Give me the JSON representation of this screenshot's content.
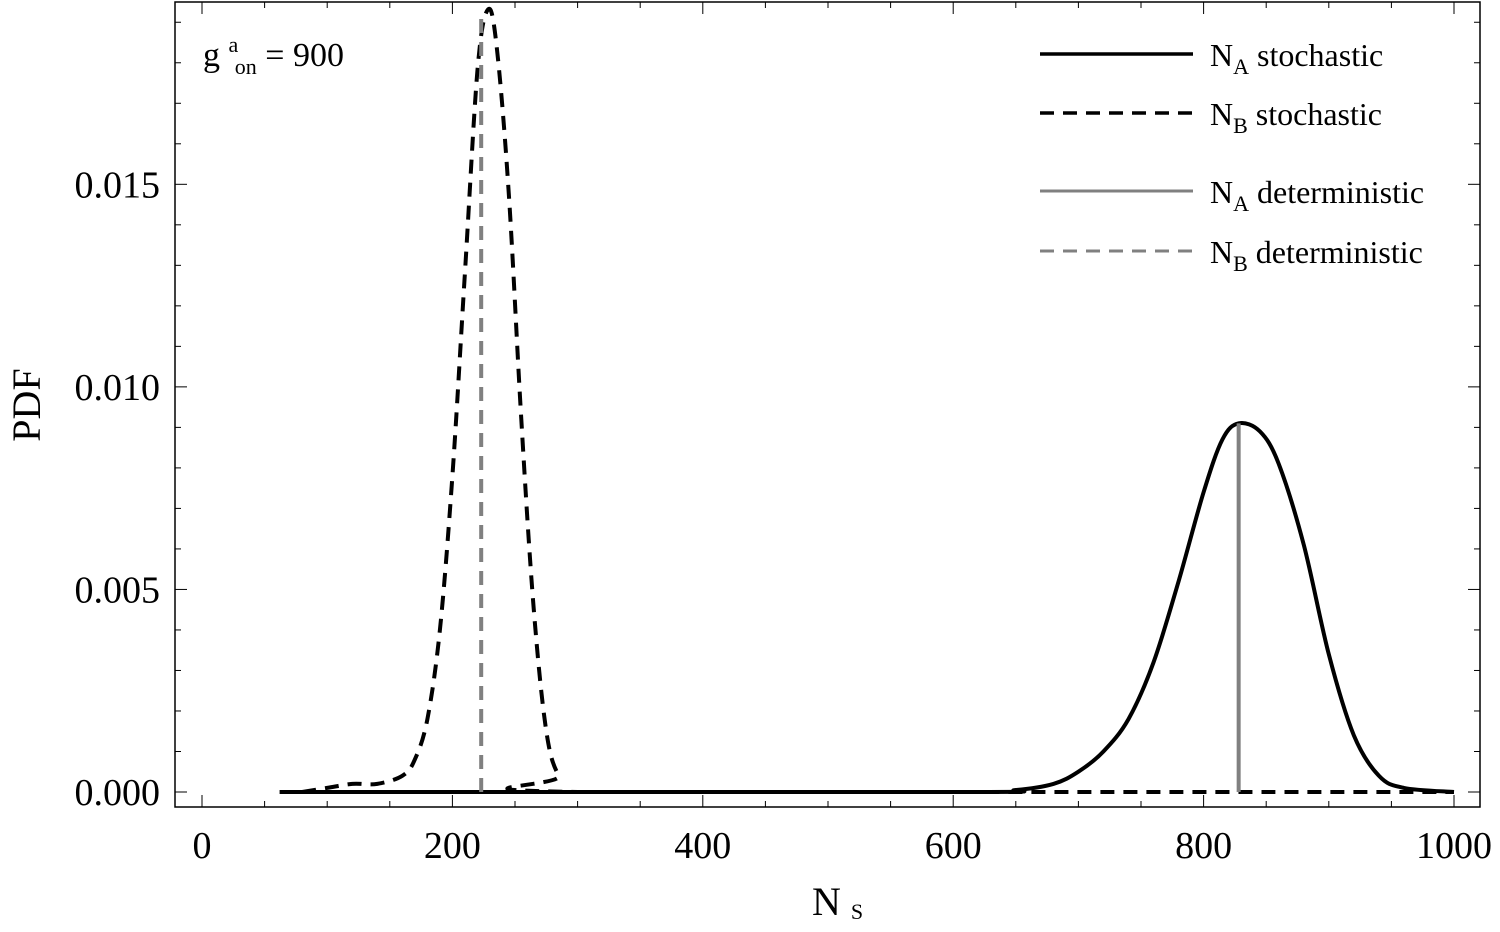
{
  "chart_data": {
    "type": "line",
    "xlabel": "N",
    "xlabel_sub": "S",
    "ylabel": "PDF",
    "xlim": [
      0,
      1000
    ],
    "ylim": [
      0,
      0.0195
    ],
    "x_ticks": [
      "0",
      "200",
      "400",
      "600",
      "800",
      "1000"
    ],
    "y_ticks": [
      "0.000",
      "0.005",
      "0.010",
      "0.015"
    ],
    "annotation": {
      "base": "g",
      "sup": "a",
      "sub": "on",
      "text": " = 900"
    },
    "legend_position": "top-right",
    "colors": {
      "stochastic": "#000000",
      "deterministic": "#808080"
    },
    "series": [
      {
        "name": "N_A stochastic",
        "label_main": "N",
        "label_sub": "A",
        "label_rest": "  stochastic",
        "style": "solid",
        "color": "#000000",
        "points": [
          [
            62,
            0
          ],
          [
            600,
            0
          ],
          [
            650,
            5e-05
          ],
          [
            680,
            0.0002
          ],
          [
            700,
            0.0005
          ],
          [
            720,
            0.001
          ],
          [
            740,
            0.0018
          ],
          [
            760,
            0.0032
          ],
          [
            780,
            0.0052
          ],
          [
            800,
            0.0074
          ],
          [
            815,
            0.0087
          ],
          [
            828,
            0.0091
          ],
          [
            845,
            0.0089
          ],
          [
            860,
            0.0081
          ],
          [
            880,
            0.0061
          ],
          [
            900,
            0.0034
          ],
          [
            920,
            0.0014
          ],
          [
            940,
            0.0004
          ],
          [
            960,
            0.0001
          ],
          [
            1000,
            0
          ]
        ]
      },
      {
        "name": "N_B stochastic",
        "label_main": "N",
        "label_sub": "B",
        "label_rest": "  stochastic",
        "style": "dashed",
        "color": "#000000",
        "points": [
          [
            80,
            0
          ],
          [
            100,
            0.0001
          ],
          [
            120,
            0.0002
          ],
          [
            140,
            0.0002
          ],
          [
            160,
            0.0004
          ],
          [
            170,
            0.0008
          ],
          [
            180,
            0.0018
          ],
          [
            190,
            0.004
          ],
          [
            200,
            0.0078
          ],
          [
            210,
            0.0128
          ],
          [
            220,
            0.0178
          ],
          [
            228,
            0.0193
          ],
          [
            235,
            0.0185
          ],
          [
            245,
            0.0148
          ],
          [
            255,
            0.0092
          ],
          [
            265,
            0.0045
          ],
          [
            275,
            0.0015
          ],
          [
            285,
            0.0004
          ],
          [
            300,
            0
          ],
          [
            1000,
            0
          ]
        ]
      },
      {
        "name": "N_A deterministic",
        "label_main": "N",
        "label_sub": "A",
        "label_rest": "  deterministic",
        "style": "solid",
        "color": "#808080",
        "vline": {
          "x": 828,
          "y_max": 0.0091
        }
      },
      {
        "name": "N_B deterministic",
        "label_main": "N",
        "label_sub": "B",
        "label_rest": "  deterministic",
        "style": "dashed",
        "color": "#808080",
        "vline": {
          "x": 223,
          "y_max": 0.0192
        }
      }
    ]
  }
}
